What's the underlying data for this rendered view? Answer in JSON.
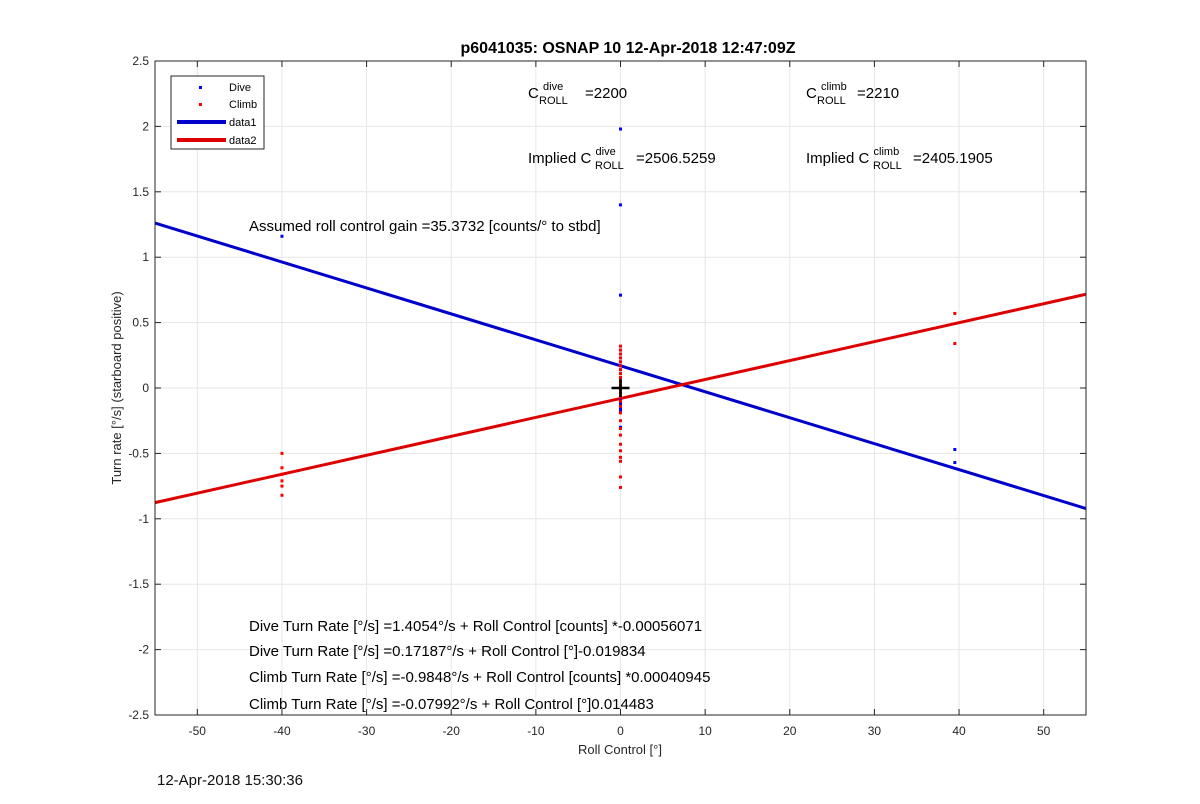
{
  "chart_data": {
    "type": "scatter",
    "title": "p6041035: OSNAP 10 12-Apr-2018 12:47:09Z",
    "xlabel": "Roll Control [°]",
    "ylabel": "Turn rate [°/s] (starboard positive)",
    "xlim": [
      -55,
      55
    ],
    "ylim": [
      -2.5,
      2.5
    ],
    "xticks": [
      -50,
      -40,
      -30,
      -20,
      -10,
      0,
      10,
      20,
      30,
      40,
      50
    ],
    "yticks": [
      -2.5,
      -2,
      -1.5,
      -1,
      -0.5,
      0,
      0.5,
      1,
      1.5,
      2,
      2.5
    ],
    "xtick_labels": [
      "-50",
      "-40",
      "-30",
      "-20",
      "-10",
      "0",
      "10",
      "20",
      "30",
      "40",
      "50"
    ],
    "ytick_labels": [
      "-2.5",
      "-2",
      "-1.5",
      "-1",
      "-0.5",
      "0",
      "0.5",
      "1",
      "1.5",
      "2",
      "2.5"
    ],
    "grid": true,
    "legend_position": "top-left",
    "series": [
      {
        "name": "Dive",
        "kind": "points",
        "color": "#0000ff",
        "points": [
          [
            -40,
            1.16
          ],
          [
            0,
            1.98
          ],
          [
            0,
            1.4
          ],
          [
            0,
            0.71
          ],
          [
            0,
            0.29
          ],
          [
            0,
            0.26
          ],
          [
            0,
            0.23
          ],
          [
            0,
            0.2
          ],
          [
            0,
            0.17
          ],
          [
            0,
            0.14
          ],
          [
            0,
            0.11
          ],
          [
            0,
            0.08
          ],
          [
            0,
            0.05
          ],
          [
            0,
            0.02
          ],
          [
            0,
            -0.01
          ],
          [
            0,
            -0.04
          ],
          [
            0,
            -0.08
          ],
          [
            0,
            -0.12
          ],
          [
            0,
            -0.16
          ],
          [
            0,
            -0.18
          ],
          [
            0,
            -0.3
          ],
          [
            39.5,
            -0.47
          ],
          [
            39.5,
            -0.57
          ]
        ]
      },
      {
        "name": "Climb",
        "kind": "points",
        "color": "#ff0000",
        "points": [
          [
            -40,
            -0.5
          ],
          [
            -40,
            -0.61
          ],
          [
            -40,
            -0.66
          ],
          [
            -40,
            -0.71
          ],
          [
            -40,
            -0.75
          ],
          [
            -40,
            -0.82
          ],
          [
            0,
            0.32
          ],
          [
            0,
            0.29
          ],
          [
            0,
            0.26
          ],
          [
            0,
            0.23
          ],
          [
            0,
            0.2
          ],
          [
            0,
            0.17
          ],
          [
            0,
            0.14
          ],
          [
            0,
            0.11
          ],
          [
            0,
            0.08
          ],
          [
            0,
            0.05
          ],
          [
            0,
            0.02
          ],
          [
            0,
            -0.01
          ],
          [
            0,
            -0.04
          ],
          [
            0,
            -0.07
          ],
          [
            0,
            -0.1
          ],
          [
            0,
            -0.14
          ],
          [
            0,
            -0.19
          ],
          [
            0,
            -0.25
          ],
          [
            0,
            -0.31
          ],
          [
            0,
            -0.36
          ],
          [
            0,
            -0.43
          ],
          [
            0,
            -0.48
          ],
          [
            0,
            -0.53
          ],
          [
            0,
            -0.56
          ],
          [
            0,
            -0.68
          ],
          [
            0,
            -0.76
          ],
          [
            39.5,
            0.57
          ],
          [
            39.5,
            0.34
          ]
        ]
      },
      {
        "name": "data1",
        "kind": "line",
        "color": "#0000cc",
        "points": [
          [
            -55,
            1.2608
          ],
          [
            55,
            -0.9215
          ]
        ]
      },
      {
        "name": "data2",
        "kind": "line",
        "color": "#dd0000",
        "points": [
          [
            -55,
            -0.8765
          ],
          [
            55,
            0.7167
          ]
        ]
      }
    ],
    "origin_marker": [
      0,
      0
    ],
    "annotations": {
      "c_dive": {
        "base": "C",
        "sup": "dive",
        "sub": "ROLL",
        "value": "=2200"
      },
      "c_climb": {
        "base": "C",
        "sup": "climb",
        "sub": "ROLL",
        "value": "=2210"
      },
      "implied_dive": {
        "prefix": "Implied C",
        "sup": "dive",
        "sub": "ROLL",
        "value": "=2506.5259"
      },
      "implied_climb": {
        "prefix": "Implied C",
        "sup": "climb",
        "sub": "ROLL",
        "value": "=2405.1905"
      },
      "gain": "Assumed roll control gain =35.3732 [counts/° to stbd]",
      "fits": [
        "Dive Turn Rate [°/s] =1.4054°/s + Roll Control [counts] *-0.00056071",
        "Dive Turn Rate [°/s] =0.17187°/s + Roll Control [°]-0.019834",
        "Climb Turn Rate [°/s] =-0.9848°/s + Roll Control [counts] *0.00040945",
        "Climb Turn Rate [°/s] =-0.07992°/s + Roll Control [°]0.014483"
      ]
    }
  },
  "footer": {
    "timestamp": "12-Apr-2018 15:30:36"
  }
}
